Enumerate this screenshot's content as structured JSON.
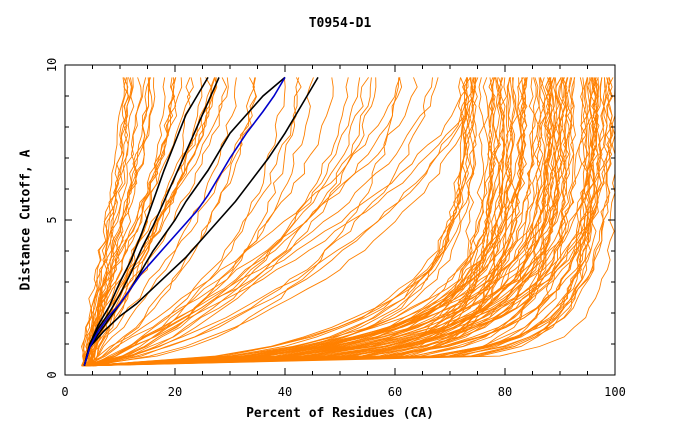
{
  "chart_data": {
    "type": "line",
    "title": "T0954-D1",
    "xlabel": "Percent of Residues (CA)",
    "ylabel": "Distance Cutoff, A",
    "xlim": [
      0,
      100
    ],
    "ylim": [
      0,
      10
    ],
    "xticks": [
      "0",
      "20",
      "40",
      "60",
      "80",
      "100"
    ],
    "yticks": [
      "0",
      "5",
      "10"
    ],
    "colors": {
      "background_models": "#ff8000",
      "highlight": "#000000",
      "reference": "#0000cc"
    },
    "highlighted_series": [
      {
        "name": "black-1",
        "color": "#000000",
        "points": [
          [
            3.5,
            0.3
          ],
          [
            4.5,
            1.0
          ],
          [
            6,
            1.6
          ],
          [
            8,
            2.2
          ],
          [
            10,
            3.0
          ],
          [
            12,
            3.7
          ],
          [
            14,
            4.6
          ],
          [
            16,
            5.6
          ],
          [
            18,
            6.6
          ],
          [
            20,
            7.5
          ],
          [
            22,
            8.4
          ],
          [
            24,
            9.0
          ],
          [
            26,
            9.6
          ]
        ]
      },
      {
        "name": "black-2",
        "color": "#000000",
        "points": [
          [
            3.5,
            0.3
          ],
          [
            4.5,
            1.0
          ],
          [
            6,
            1.5
          ],
          [
            8,
            2.0
          ],
          [
            10,
            2.6
          ],
          [
            12,
            3.3
          ],
          [
            14,
            4.1
          ],
          [
            16,
            4.8
          ],
          [
            18,
            5.6
          ],
          [
            20,
            6.4
          ],
          [
            22,
            7.2
          ],
          [
            24,
            8.0
          ],
          [
            26,
            8.8
          ],
          [
            28,
            9.6
          ]
        ]
      },
      {
        "name": "black-3",
        "color": "#000000",
        "points": [
          [
            3.5,
            0.3
          ],
          [
            4.5,
            0.9
          ],
          [
            6,
            1.3
          ],
          [
            8,
            1.8
          ],
          [
            10,
            2.3
          ],
          [
            12,
            2.8
          ],
          [
            14,
            3.4
          ],
          [
            16,
            4.0
          ],
          [
            18,
            4.5
          ],
          [
            20,
            5.0
          ],
          [
            22,
            5.6
          ],
          [
            24,
            6.1
          ],
          [
            26,
            6.6
          ],
          [
            28,
            7.2
          ],
          [
            30,
            7.8
          ],
          [
            33,
            8.4
          ],
          [
            36,
            9.0
          ],
          [
            40,
            9.6
          ]
        ]
      },
      {
        "name": "black-4",
        "color": "#000000",
        "points": [
          [
            3.5,
            0.3
          ],
          [
            4.5,
            0.9
          ],
          [
            7,
            1.4
          ],
          [
            10,
            1.9
          ],
          [
            13,
            2.3
          ],
          [
            16,
            2.8
          ],
          [
            19,
            3.3
          ],
          [
            22,
            3.8
          ],
          [
            25,
            4.4
          ],
          [
            28,
            5.0
          ],
          [
            31,
            5.6
          ],
          [
            34,
            6.3
          ],
          [
            37,
            7.0
          ],
          [
            40,
            7.8
          ],
          [
            42,
            8.4
          ],
          [
            44,
            9.0
          ],
          [
            46,
            9.6
          ]
        ]
      },
      {
        "name": "blue",
        "color": "#0000cc",
        "points": [
          [
            3.5,
            0.3
          ],
          [
            4.5,
            0.9
          ],
          [
            6,
            1.4
          ],
          [
            8,
            1.9
          ],
          [
            10,
            2.3
          ],
          [
            12,
            2.8
          ],
          [
            14,
            3.3
          ],
          [
            16,
            3.7
          ],
          [
            18,
            4.1
          ],
          [
            20,
            4.5
          ],
          [
            22,
            4.9
          ],
          [
            24,
            5.3
          ],
          [
            26,
            5.8
          ],
          [
            28,
            6.4
          ],
          [
            30,
            7.0
          ],
          [
            33,
            7.8
          ],
          [
            36,
            8.5
          ],
          [
            38,
            9.0
          ],
          [
            40,
            9.6
          ]
        ]
      }
    ],
    "background_model_count": 150
  }
}
